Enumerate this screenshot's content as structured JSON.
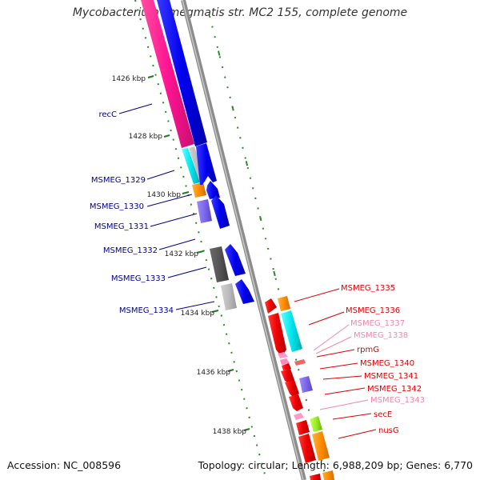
{
  "title": "Mycobacterium smegmatis str. MC2 155, complete genome",
  "footer": {
    "accession": "Accession: NC_008596",
    "topology": "Topology: circular; Length: 6,988,209 bp; Genes: 6,770"
  },
  "colors": {
    "backbone": "#8c8c8c",
    "tick": "#1f7a1f",
    "left_label": "#00008b",
    "right_label_red": "#dd0000",
    "right_label_pink": "#ee88aa"
  },
  "kbp_ticks": [
    "1426 kbp",
    "1428 kbp",
    "1430 kbp",
    "1432 kbp",
    "1434 kbp",
    "1436 kbp",
    "1438 kbp"
  ],
  "left_labels": [
    "recC",
    "MSMEG_1329",
    "MSMEG_1330",
    "MSMEG_1331",
    "MSMEG_1332",
    "MSMEG_1333",
    "MSMEG_1334"
  ],
  "right_labels": [
    {
      "text": "MSMEG_1335",
      "color": "#dd0000"
    },
    {
      "text": "MSMEG_1336",
      "color": "#dd0000"
    },
    {
      "text": "MSMEG_1337",
      "color": "#ee88aa"
    },
    {
      "text": "MSMEG_1338",
      "color": "#ee88aa"
    },
    {
      "text": "rpmG",
      "color": "#dd0000"
    },
    {
      "text": "MSMEG_1340",
      "color": "#dd0000"
    },
    {
      "text": "MSMEG_1341",
      "color": "#dd0000"
    },
    {
      "text": "MSMEG_1342",
      "color": "#dd0000"
    },
    {
      "text": "MSMEG_1343",
      "color": "#ee88aa"
    },
    {
      "text": "secE",
      "color": "#dd0000"
    },
    {
      "text": "nusG",
      "color": "#dd0000"
    }
  ]
}
